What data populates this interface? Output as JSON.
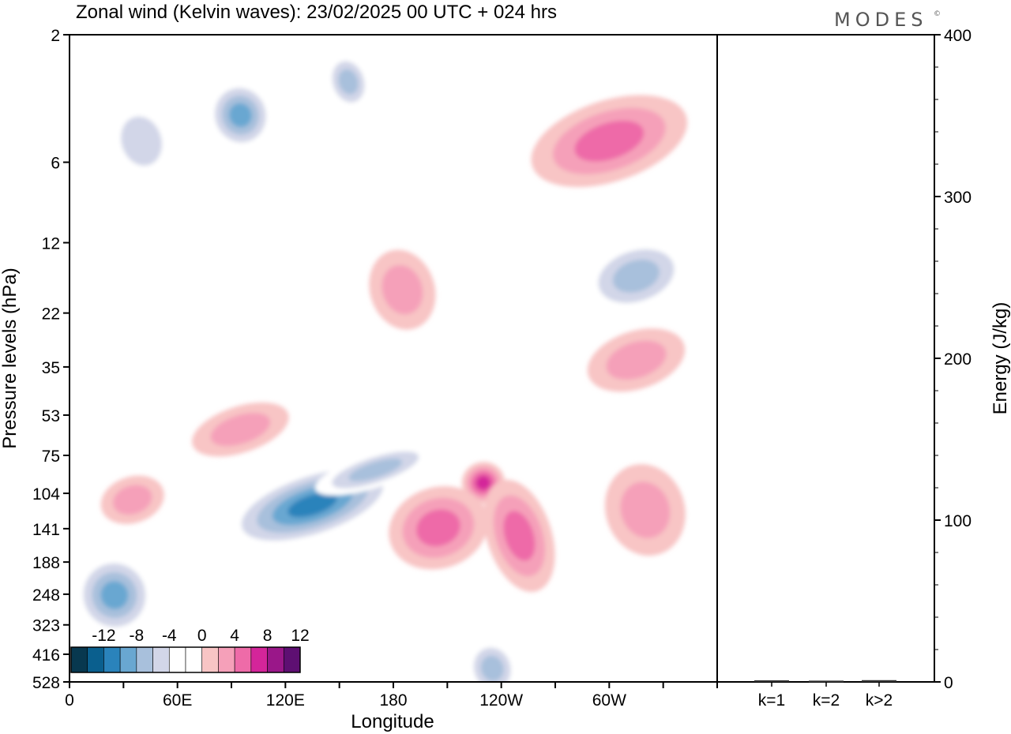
{
  "chart_data": [
    {
      "type": "heatmap",
      "title": "Zonal wind (Kelvin waves):  23/02/2025  00 UTC  + 024 hrs",
      "xlabel": "Longitude",
      "ylabel": "Pressure levels (hPa)",
      "x_ticks": [
        "0",
        "60E",
        "120E",
        "180",
        "120W",
        "60W"
      ],
      "y_ticks": [
        "2",
        "6",
        "12",
        "22",
        "35",
        "53",
        "75",
        "104",
        "141",
        "188",
        "248",
        "323",
        "416",
        "528"
      ],
      "xlim": [
        0,
        360
      ],
      "y_scale": "log",
      "colorbar": {
        "labels": [
          "-12",
          "-8",
          "-4",
          "0",
          "4",
          "8",
          "12"
        ],
        "colors": [
          "#08384f",
          "#0a5f8e",
          "#2a83bb",
          "#69a7d1",
          "#a8c0dc",
          "#d2d6e8",
          "#ffffff",
          "#ffffff",
          "#f8c5c5",
          "#f5a0b9",
          "#ee6ba8",
          "#d4259a",
          "#9a1789",
          "#5e0f72"
        ]
      },
      "regions": [
        {
          "lon": 40,
          "p": 5,
          "value": -4,
          "rx": 18,
          "ry": 0.35
        },
        {
          "lon": 95,
          "p": 4,
          "value": -8,
          "rx": 18,
          "ry": 0.3
        },
        {
          "lon": 155,
          "p": 3,
          "value": -6,
          "rx": 12,
          "ry": 0.25
        },
        {
          "lon": 300,
          "p": 5,
          "value": 6,
          "rx": 45,
          "ry": 0.35
        },
        {
          "lon": 185,
          "p": 18,
          "value": 4,
          "rx": 18,
          "ry": 0.35
        },
        {
          "lon": 315,
          "p": 16,
          "value": -6,
          "rx": 30,
          "ry": 0.3
        },
        {
          "lon": 315,
          "p": 33,
          "value": 4,
          "rx": 28,
          "ry": 0.25
        },
        {
          "lon": 95,
          "p": 60,
          "value": 4,
          "rx": 28,
          "ry": 0.2
        },
        {
          "lon": 135,
          "p": 115,
          "value": -10,
          "rx": 50,
          "ry": 0.3
        },
        {
          "lon": 170,
          "p": 85,
          "value": -6,
          "rx": 35,
          "ry": 0.15
        },
        {
          "lon": 230,
          "p": 95,
          "value": 8,
          "rx": 12,
          "ry": 0.18
        },
        {
          "lon": 205,
          "p": 140,
          "value": 7,
          "rx": 28,
          "ry": 0.35
        },
        {
          "lon": 250,
          "p": 150,
          "value": 7,
          "rx": 18,
          "ry": 0.5
        },
        {
          "lon": 320,
          "p": 120,
          "value": 4,
          "rx": 22,
          "ry": 0.4
        },
        {
          "lon": 35,
          "p": 110,
          "value": 4,
          "rx": 18,
          "ry": 0.2
        },
        {
          "lon": 25,
          "p": 250,
          "value": -8,
          "rx": 22,
          "ry": 0.35
        },
        {
          "lon": 235,
          "p": 470,
          "value": -6,
          "rx": 14,
          "ry": 0.25
        }
      ]
    },
    {
      "type": "bar",
      "categories": [
        "k=1",
        "k=2",
        "k>2"
      ],
      "values": [
        0.5,
        0.3,
        0.6
      ],
      "ylabel": "Energy (J/kg)",
      "ylim": [
        0,
        400
      ],
      "y_ticks": [
        "0",
        "100",
        "200",
        "300",
        "400"
      ]
    }
  ],
  "brand": "MODES",
  "brand_mark": "©"
}
